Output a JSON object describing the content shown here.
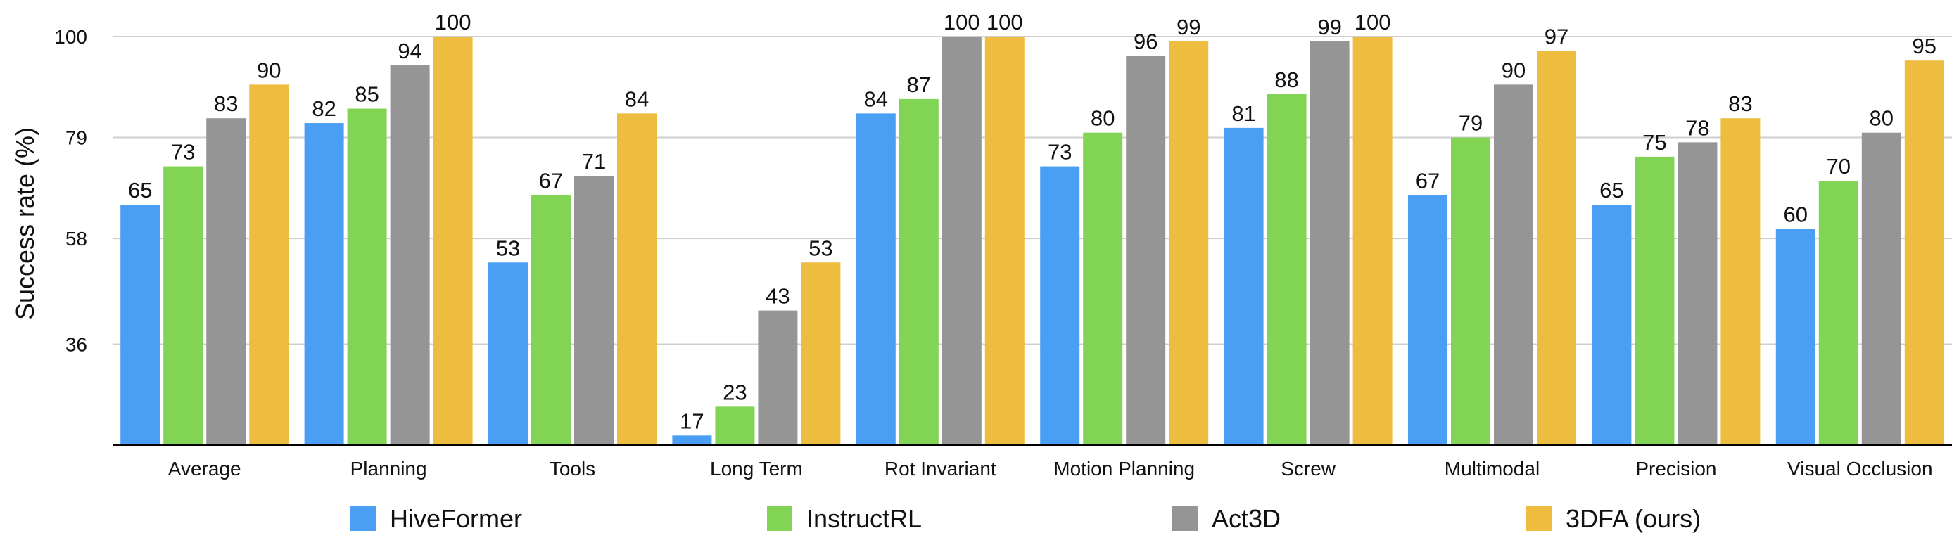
{
  "chart_data": {
    "type": "bar",
    "title": "",
    "xlabel": "",
    "ylabel": "Success rate (%)",
    "ylim": [
      15,
      100
    ],
    "yticks": [
      36,
      58,
      79,
      100
    ],
    "grid": true,
    "legend_position": "bottom",
    "categories": [
      "Average",
      "Planning",
      "Tools",
      "Long Term",
      "Rot Invariant",
      "Motion Planning",
      "Screw",
      "Multimodal",
      "Precision",
      "Visual Occlusion"
    ],
    "series": [
      {
        "name": "HiveFormer",
        "color": "#4A9FF5",
        "values": [
          65,
          82,
          53,
          17,
          84,
          73,
          81,
          67,
          65,
          60
        ]
      },
      {
        "name": "InstructRL",
        "color": "#82D454",
        "values": [
          73,
          85,
          67,
          23,
          87,
          80,
          88,
          79,
          75,
          70
        ]
      },
      {
        "name": "Act3D",
        "color": "#959595",
        "values": [
          83,
          94,
          71,
          43,
          100,
          96,
          99,
          90,
          78,
          80
        ]
      },
      {
        "name": "3DFA (ours)",
        "color": "#EEBD40",
        "values": [
          90,
          100,
          84,
          53,
          100,
          99,
          100,
          97,
          83,
          95
        ]
      }
    ]
  }
}
